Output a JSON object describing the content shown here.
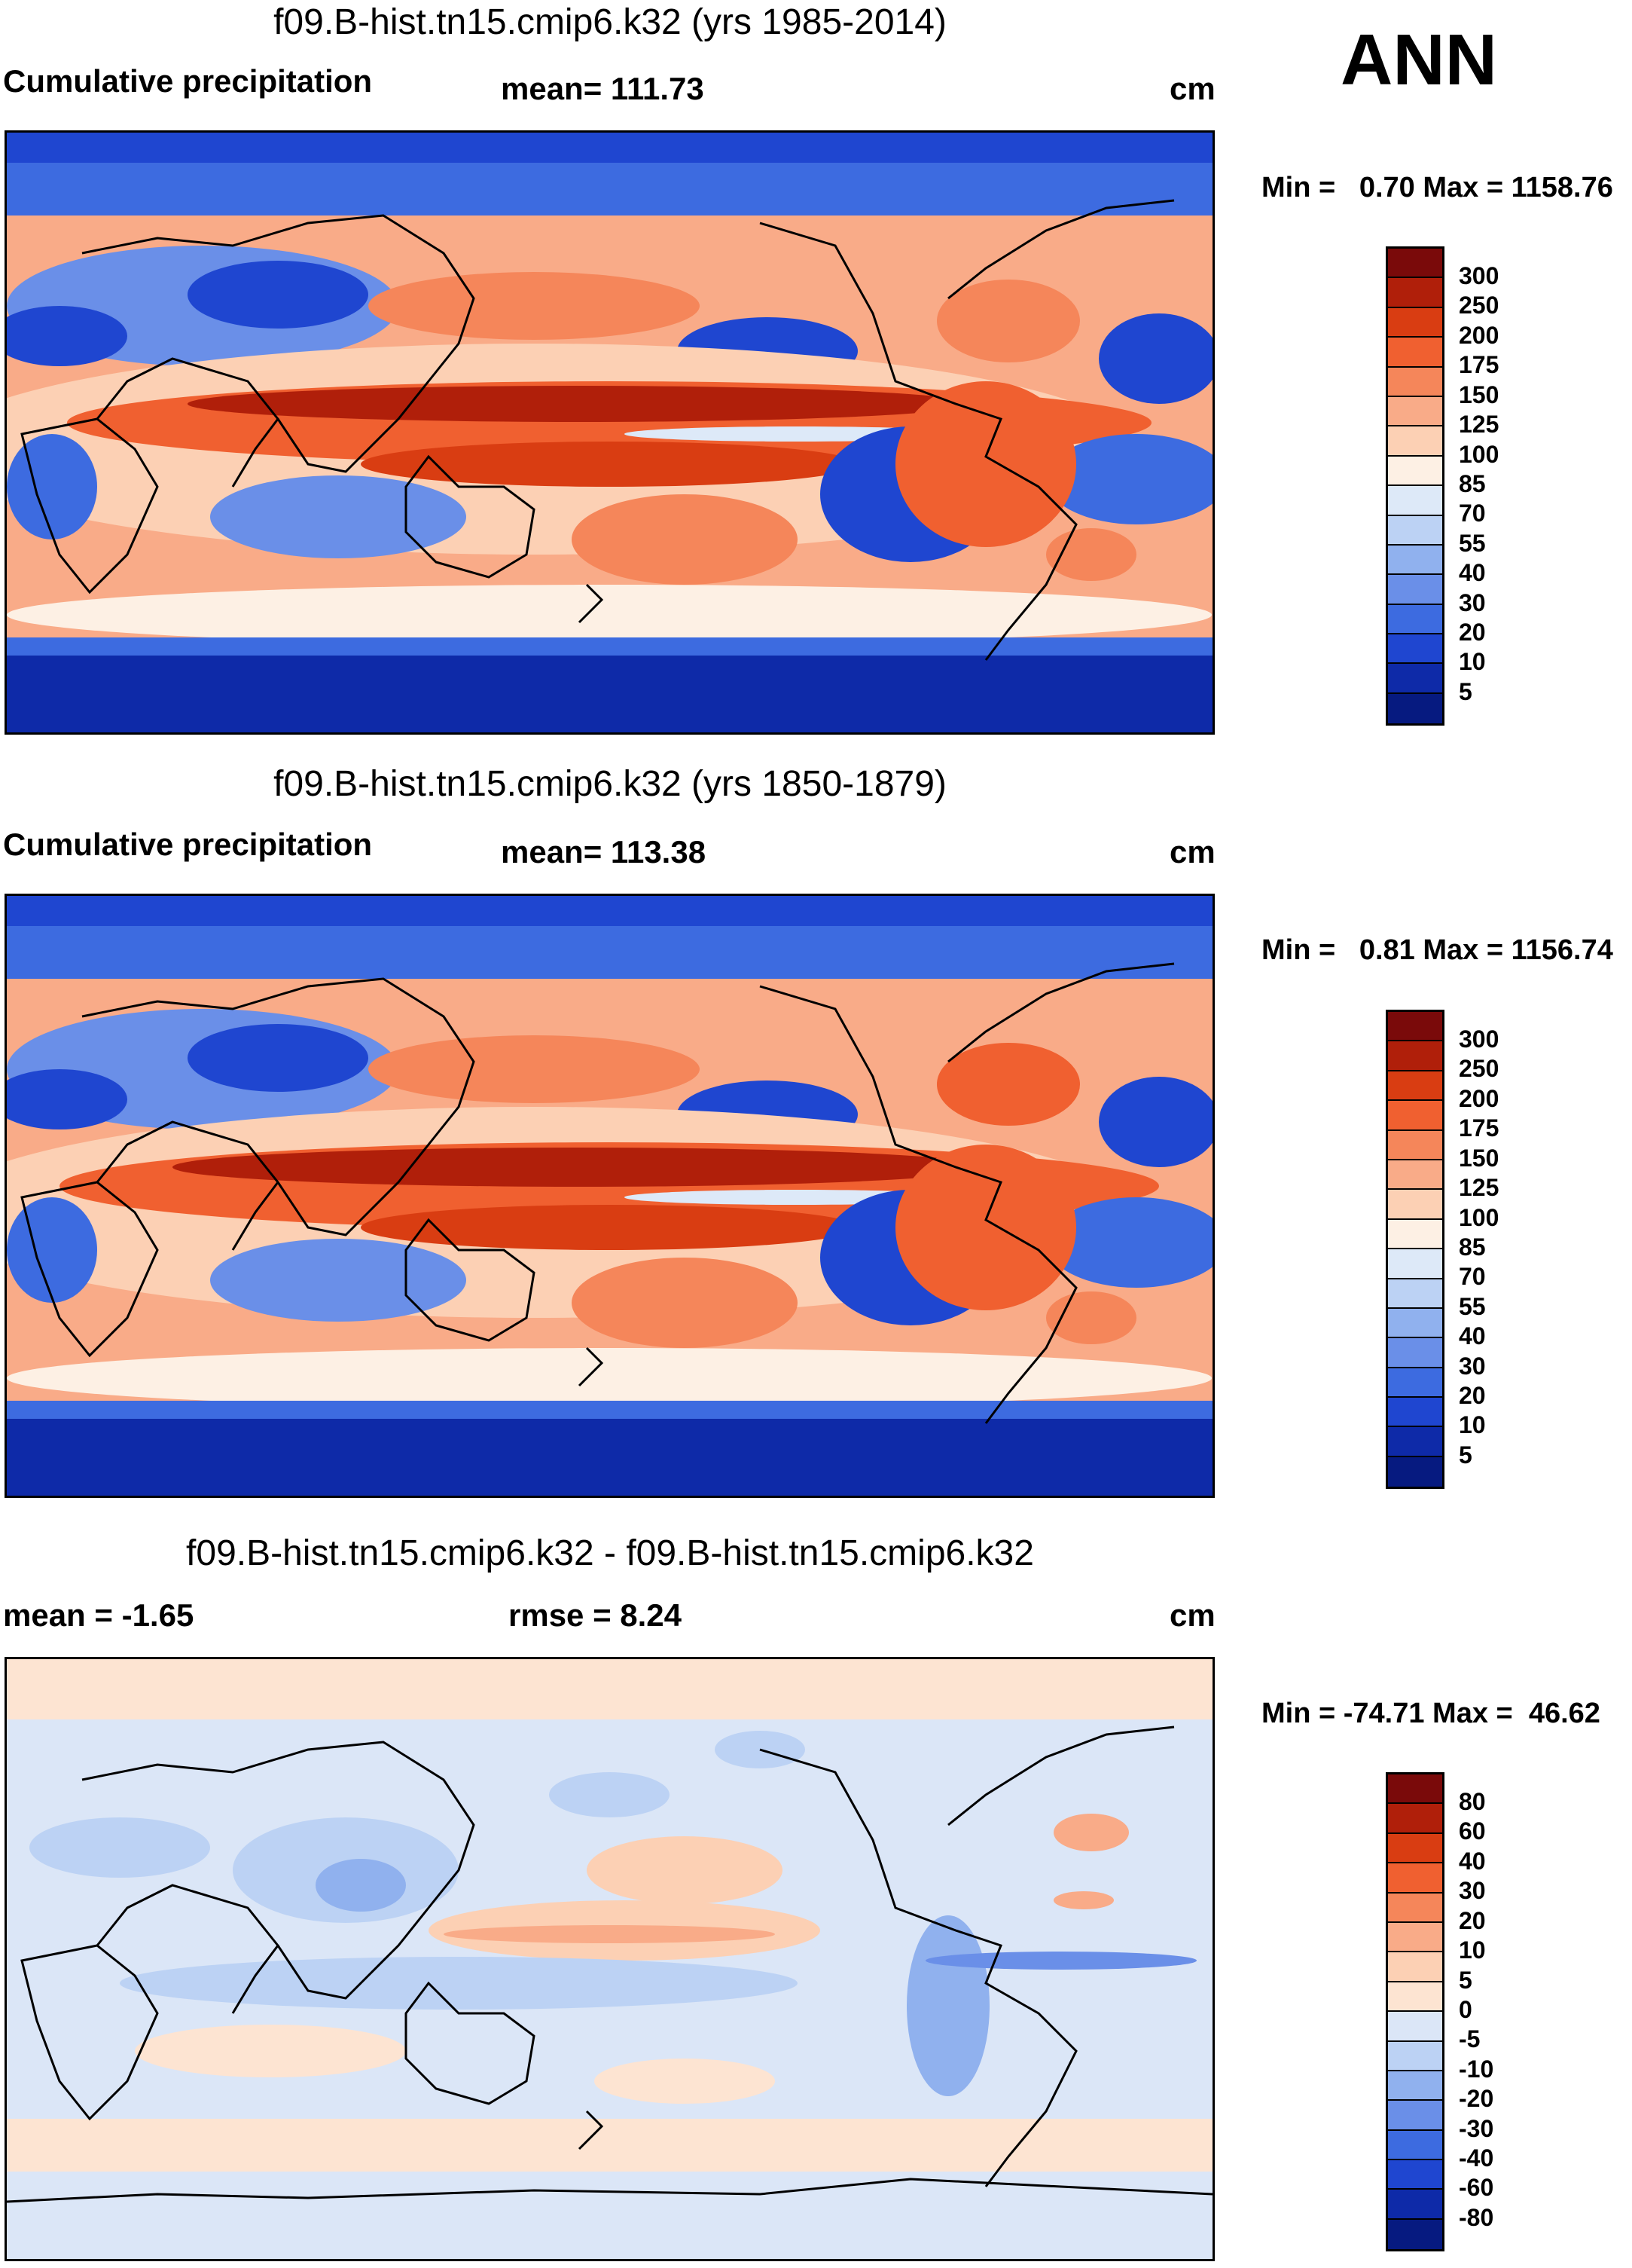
{
  "season": "ANN",
  "panels": [
    {
      "title": "f09.B-hist.tn15.cmip6.k32 (yrs 1985-2014)",
      "left_label": "Cumulative precipitation",
      "center_label": "mean= 111.73",
      "units": "cm",
      "minmax": "Min =   0.70 Max = 1158.76"
    },
    {
      "title": "f09.B-hist.tn15.cmip6.k32 (yrs 1850-1879)",
      "left_label": "Cumulative precipitation",
      "center_label": "mean= 113.38",
      "units": "cm",
      "minmax": "Min =   0.81 Max = 1156.74"
    },
    {
      "title": "f09.B-hist.tn15.cmip6.k32 - f09.B-hist.tn15.cmip6.k32",
      "left_label": "mean =  -1.65",
      "center_label": "rmse =    8.24",
      "units": "cm",
      "minmax": "Min = -74.71 Max =  46.62"
    }
  ],
  "colorbar_abs": {
    "ticks": [
      "300",
      "250",
      "200",
      "175",
      "150",
      "125",
      "100",
      "85",
      "70",
      "55",
      "40",
      "30",
      "20",
      "10",
      "5"
    ],
    "colors": [
      "#7a0a0a",
      "#b01f0a",
      "#d93d12",
      "#f06030",
      "#f5865a",
      "#f9ab88",
      "#fcd0b4",
      "#fdf0e4",
      "#dde9f8",
      "#bcd2f4",
      "#90b1ee",
      "#6a8fe8",
      "#3d6be0",
      "#1f46d0",
      "#0e2aa8",
      "#061a80"
    ]
  },
  "colorbar_diff": {
    "ticks": [
      "80",
      "60",
      "40",
      "30",
      "20",
      "10",
      "5",
      "0",
      "-5",
      "-10",
      "-20",
      "-30",
      "-40",
      "-60",
      "-80"
    ],
    "colors": [
      "#7a0a0a",
      "#b01f0a",
      "#d93d12",
      "#f06030",
      "#f5865a",
      "#f9ab88",
      "#fcd0b4",
      "#fde4d2",
      "#dbe6f7",
      "#bcd2f4",
      "#90b1ee",
      "#6a8fe8",
      "#3d6be0",
      "#1f46d0",
      "#0e2aa8",
      "#061a80"
    ]
  }
}
